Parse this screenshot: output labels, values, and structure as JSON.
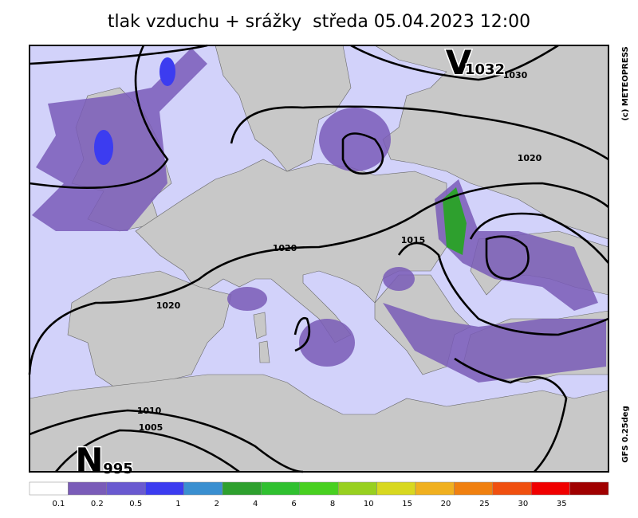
{
  "title": "tlak vzduchu + srážky  středa 05.04.2023 12:00",
  "credit": "(c) METEOPRESS",
  "model": "GFS 0.25deg",
  "centers": [
    {
      "symbol": "V",
      "value": "1032"
    },
    {
      "symbol": "N",
      "value": "995"
    }
  ],
  "isobar_labels": [
    "1030",
    "1020",
    "1020",
    "1020",
    "1015",
    "1010",
    "1005"
  ],
  "legend": {
    "thresholds": [
      0.1,
      0.2,
      0.5,
      1,
      2,
      4,
      6,
      8,
      10,
      15,
      20,
      25,
      30,
      35
    ],
    "colors": [
      "#ffffff",
      "#7a5cb8",
      "#6a5ad0",
      "#3c3cf0",
      "#3a8fd0",
      "#2ea02e",
      "#30c030",
      "#48d020",
      "#98d020",
      "#d8d820",
      "#f0b020",
      "#f08010",
      "#f05010",
      "#f00000",
      "#a00000"
    ]
  }
}
